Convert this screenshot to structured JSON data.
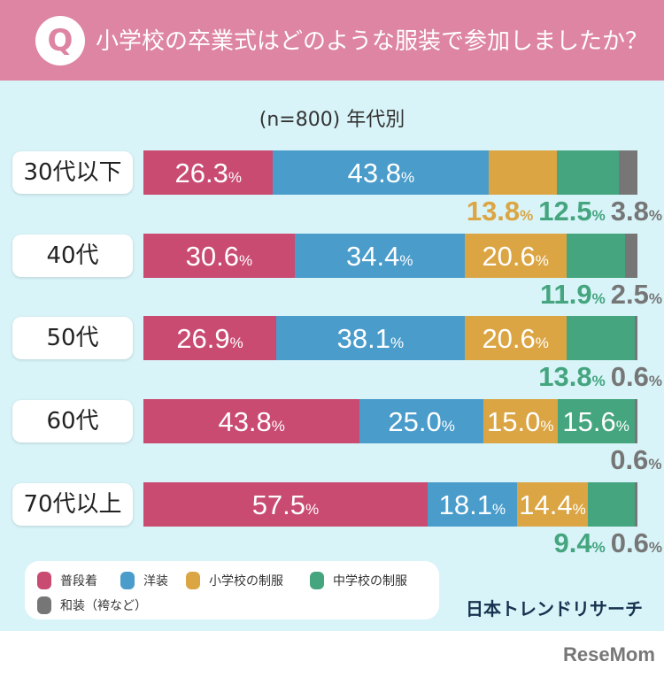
{
  "header": {
    "q_icon": "Q",
    "title": "小学校の卒業式はどのような服装で参加しましたか？"
  },
  "chart_data": {
    "type": "bar",
    "orientation": "horizontal",
    "stacked": true,
    "title": "小学校の卒業式はどのような服装で参加しましたか？",
    "subtitle": "(n=800) 年代別",
    "categories": [
      "30代以下",
      "40代",
      "50代",
      "60代",
      "70代以上"
    ],
    "series": [
      {
        "name": "普段着",
        "color": "#c94b72",
        "values": [
          26.3,
          30.6,
          26.9,
          43.8,
          57.5
        ]
      },
      {
        "name": "洋装",
        "color": "#4a9ccb",
        "values": [
          43.8,
          34.4,
          38.1,
          25.0,
          18.1
        ]
      },
      {
        "name": "小学校の制服",
        "color": "#dba544",
        "values": [
          13.8,
          20.6,
          20.6,
          15.0,
          14.4
        ]
      },
      {
        "name": "中学校の制服",
        "color": "#44a57f",
        "values": [
          12.5,
          11.9,
          13.8,
          15.6,
          9.4
        ]
      },
      {
        "name": "和装（袴など）",
        "color": "#767676",
        "values": [
          3.8,
          2.5,
          0.6,
          0.6,
          0.6
        ]
      }
    ],
    "unit": "%",
    "legend_position": "bottom-left"
  },
  "brand": "日本トレンドリサーチ",
  "watermark": "ReseMom"
}
